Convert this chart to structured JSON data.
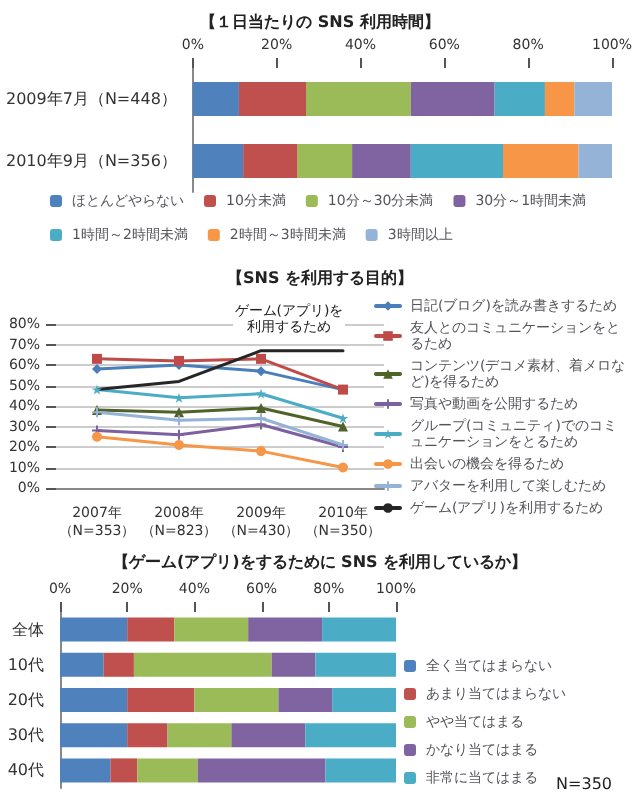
{
  "chart_data": [
    {
      "type": "bar",
      "title": "【１日当たりの SNS 利用時間】",
      "orientation": "horizontal",
      "stacked": true,
      "legend": "bottom",
      "categories": [
        "2009年7月（N=448）",
        "2010年9月（N=356）"
      ],
      "xlim": [
        0,
        100
      ],
      "xticks": [
        {
          "value": 0,
          "label": "0%"
        },
        {
          "value": 20,
          "label": "20%"
        },
        {
          "value": 40,
          "label": "40%"
        },
        {
          "value": 60,
          "label": "60%"
        },
        {
          "value": 80,
          "label": "80%"
        },
        {
          "value": 100,
          "label": "100%"
        }
      ],
      "series": [
        {
          "name": "ほとんどやらない",
          "color": "#4f81bd",
          "values": [
            11,
            12
          ]
        },
        {
          "name": "10分未満",
          "color": "#c0504d",
          "values": [
            16,
            13
          ]
        },
        {
          "name": "10分～30分未満",
          "color": "#9bbb59",
          "values": [
            25,
            13
          ]
        },
        {
          "name": "30分～1時間未満",
          "color": "#8064a2",
          "values": [
            20,
            14
          ]
        },
        {
          "name": "1時間～2時間未満",
          "color": "#4bacc6",
          "values": [
            12,
            22
          ]
        },
        {
          "name": "2時間～3時間未満",
          "color": "#f79646",
          "values": [
            7,
            18
          ]
        },
        {
          "name": "3時間以上",
          "color": "#95b3d7",
          "values": [
            9,
            8
          ]
        }
      ]
    },
    {
      "type": "line",
      "title": "【SNS を利用する目的】",
      "legend": "right",
      "grid": "y",
      "categories": [
        "2007年（N=353）",
        "2008年（N=823）",
        "2009年（N=430）",
        "2010年（N=350）"
      ],
      "ylim": [
        0,
        80
      ],
      "yticks": [
        {
          "value": 0,
          "label": "0%"
        },
        {
          "value": 10,
          "label": "10%"
        },
        {
          "value": 20,
          "label": "20%"
        },
        {
          "value": 30,
          "label": "30%"
        },
        {
          "value": 40,
          "label": "40%"
        },
        {
          "value": 50,
          "label": "50%"
        },
        {
          "value": 60,
          "label": "60%"
        },
        {
          "value": 70,
          "label": "70%"
        },
        {
          "value": 80,
          "label": "80%"
        }
      ],
      "annotations": [
        {
          "text": "ゲーム(アプリ)を利用するため",
          "x": "2009年（N=430）",
          "y": 70
        }
      ],
      "series": [
        {
          "name": "日記(ブログ)を読み書きするため",
          "color": "#4a7ebb",
          "marker": "diamond",
          "values": [
            58,
            60,
            57,
            48
          ]
        },
        {
          "name": "友人とのコミュニケーションをとるため",
          "color": "#be4b48",
          "marker": "square",
          "values": [
            63,
            62,
            63,
            48
          ]
        },
        {
          "name": "コンテンツ(デコメ素材、着メロなど)を得るため",
          "color": "#4f6228",
          "marker": "triangle",
          "values": [
            38,
            37,
            39,
            30
          ]
        },
        {
          "name": "写真や動画を公開するため",
          "color": "#7d60a0",
          "marker": "cross",
          "values": [
            28,
            26,
            31,
            20
          ]
        },
        {
          "name": "グループ(コミュニティ)でのコミュニケーションをとるため",
          "color": "#4bacc6",
          "marker": "star",
          "values": [
            48,
            44,
            46,
            34
          ]
        },
        {
          "name": "出会いの機会を得るため",
          "color": "#f79646",
          "marker": "circle",
          "values": [
            25,
            21,
            18,
            10
          ]
        },
        {
          "name": "アバターを利用して楽しむため",
          "color": "#95b3d7",
          "marker": "cross",
          "values": [
            37,
            33,
            34,
            21
          ]
        },
        {
          "name": "ゲーム(アプリ)を利用するため",
          "color": "#262626",
          "marker": "none",
          "values": [
            48,
            52,
            67,
            67
          ]
        }
      ]
    },
    {
      "type": "bar",
      "title": "【ゲーム(アプリ)をするために SNS を利用しているか】",
      "orientation": "horizontal",
      "stacked": true,
      "legend": "right",
      "categories": [
        "全体",
        "10代",
        "20代",
        "30代",
        "40代"
      ],
      "xlim": [
        0,
        100
      ],
      "xticks": [
        {
          "value": 0,
          "label": "0%"
        },
        {
          "value": 20,
          "label": "20%"
        },
        {
          "value": 40,
          "label": "40%"
        },
        {
          "value": 60,
          "label": "60%"
        },
        {
          "value": 80,
          "label": "80%"
        },
        {
          "value": 100,
          "label": "100%"
        }
      ],
      "annotations": [
        "N=350"
      ],
      "series": [
        {
          "name": "全く当てはまらない",
          "color": "#4f81bd",
          "values": [
            20,
            13,
            20,
            20,
            15
          ]
        },
        {
          "name": "あまり当てはまらない",
          "color": "#c0504d",
          "values": [
            14,
            9,
            20,
            12,
            8
          ]
        },
        {
          "name": "やや当てはまる",
          "color": "#9bbb59",
          "values": [
            22,
            41,
            25,
            19,
            18
          ]
        },
        {
          "name": "かなり当てはまる",
          "color": "#8064a2",
          "values": [
            22,
            13,
            16,
            22,
            38
          ]
        },
        {
          "name": "非常に当てはまる",
          "color": "#4bacc6",
          "values": [
            22,
            24,
            19,
            27,
            21
          ]
        }
      ]
    }
  ]
}
